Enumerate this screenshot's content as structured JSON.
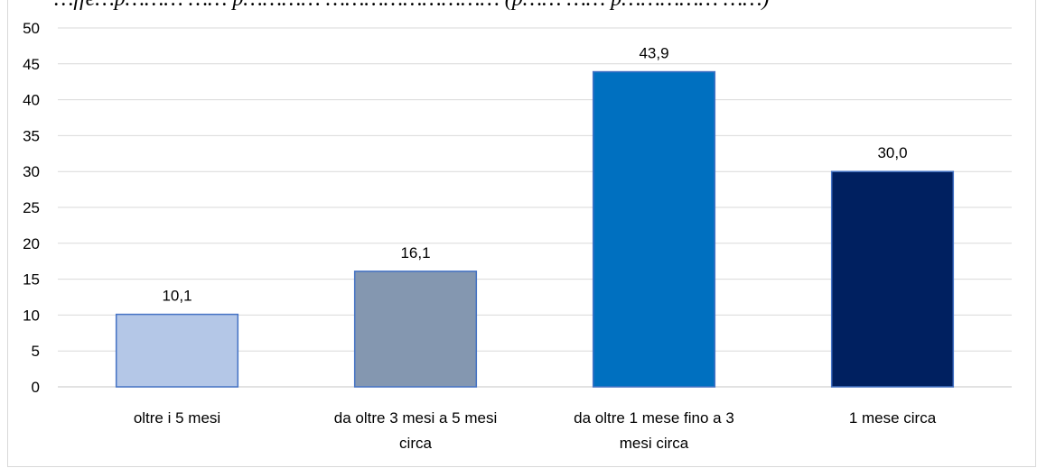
{
  "caption": "…ffe…p……… …… p………… ……………………… (p…… …… p…………… ……)",
  "chart_data": {
    "type": "bar",
    "title": "",
    "xlabel": "",
    "ylabel": "",
    "ylim": [
      0,
      50
    ],
    "yticks": [
      0,
      5,
      10,
      15,
      20,
      25,
      30,
      35,
      40,
      45,
      50
    ],
    "grid": true,
    "categories": [
      "oltre i 5 mesi",
      "da oltre 3 mesi a 5 mesi circa",
      "da oltre 1 mese fino a 3 mesi circa",
      "1 mese circa"
    ],
    "category_lines": [
      [
        "oltre i 5 mesi"
      ],
      [
        "da oltre 3 mesi a 5 mesi",
        "circa"
      ],
      [
        "da oltre 1 mese fino a 3",
        "mesi circa"
      ],
      [
        "1 mese circa"
      ]
    ],
    "values": [
      10.1,
      16.1,
      43.9,
      30.0
    ],
    "value_labels": [
      "10,1",
      "16,1",
      "43,9",
      "30,0"
    ],
    "colors": [
      "#b4c7e7",
      "#8497b0",
      "#0070c0",
      "#002060"
    ],
    "border_color": "#4472c4",
    "gridline_color": "#d9d9d9"
  }
}
